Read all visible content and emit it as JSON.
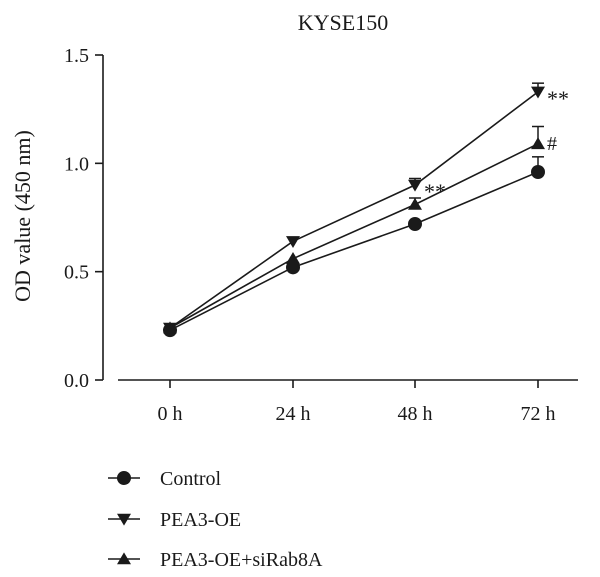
{
  "chart_data": {
    "type": "line",
    "title": "KYSE150",
    "xlabel": "",
    "ylabel": "OD value (450 nm)",
    "categories": [
      "0 h",
      "24 h",
      "48 h",
      "72 h"
    ],
    "ylim": [
      0,
      1.5
    ],
    "yticks": [
      0.0,
      0.5,
      1.0,
      1.5
    ],
    "ytick_labels": [
      "0.0",
      "0.5",
      "1.0",
      "1.5"
    ],
    "grid": false,
    "legend_position": "bottom-left",
    "series": [
      {
        "name": "Control",
        "marker": "circle",
        "color": "#1a1a1a",
        "values": [
          0.23,
          0.52,
          0.72,
          0.96
        ],
        "errors": [
          0.01,
          0.01,
          0.01,
          0.07
        ],
        "annotations": [
          "",
          "",
          "",
          ""
        ]
      },
      {
        "name": "PEA3-OE",
        "marker": "triangle-down",
        "color": "#1a1a1a",
        "values": [
          0.24,
          0.64,
          0.9,
          1.33
        ],
        "errors": [
          0.01,
          0.01,
          0.03,
          0.04
        ],
        "annotations": [
          "",
          "",
          "**",
          "**"
        ]
      },
      {
        "name": "PEA3-OE+siRab8A",
        "marker": "triangle-up",
        "color": "#1a1a1a",
        "values": [
          0.24,
          0.56,
          0.81,
          1.09
        ],
        "errors": [
          0.01,
          0.01,
          0.03,
          0.08
        ],
        "annotations": [
          "",
          "",
          "",
          "#"
        ]
      }
    ]
  }
}
